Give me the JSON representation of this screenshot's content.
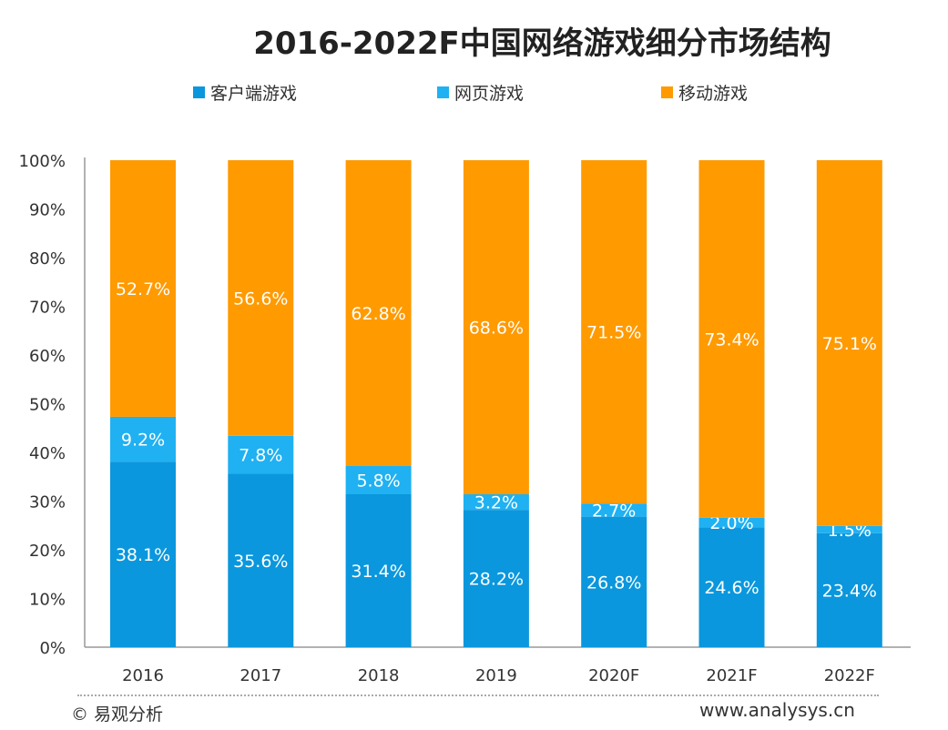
{
  "chart_data": {
    "type": "bar",
    "stacked": true,
    "title": "2016-2022F中国网络游戏细分市场结构",
    "categories": [
      "2016",
      "2017",
      "2018",
      "2019",
      "2020F",
      "2021F",
      "2022F"
    ],
    "series": [
      {
        "name": "客户端游戏",
        "color": "#0a97dd",
        "values": [
          38.1,
          35.6,
          31.4,
          28.2,
          26.8,
          24.6,
          23.4
        ]
      },
      {
        "name": "网页游戏",
        "color": "#1fb1f2",
        "values": [
          9.2,
          7.8,
          5.8,
          3.2,
          2.7,
          2.0,
          1.5
        ]
      },
      {
        "name": "移动游戏",
        "color": "#ff9a00",
        "values": [
          52.7,
          56.6,
          62.8,
          68.6,
          71.5,
          73.4,
          75.1
        ]
      }
    ],
    "yticks": [
      "0%",
      "10%",
      "20%",
      "30%",
      "40%",
      "50%",
      "60%",
      "70%",
      "80%",
      "90%",
      "100%"
    ],
    "ylim": [
      0,
      100
    ],
    "grid": false,
    "legend": "top"
  },
  "footer": {
    "copyright": "© 易观分析",
    "url": "www.analysys.cn"
  }
}
